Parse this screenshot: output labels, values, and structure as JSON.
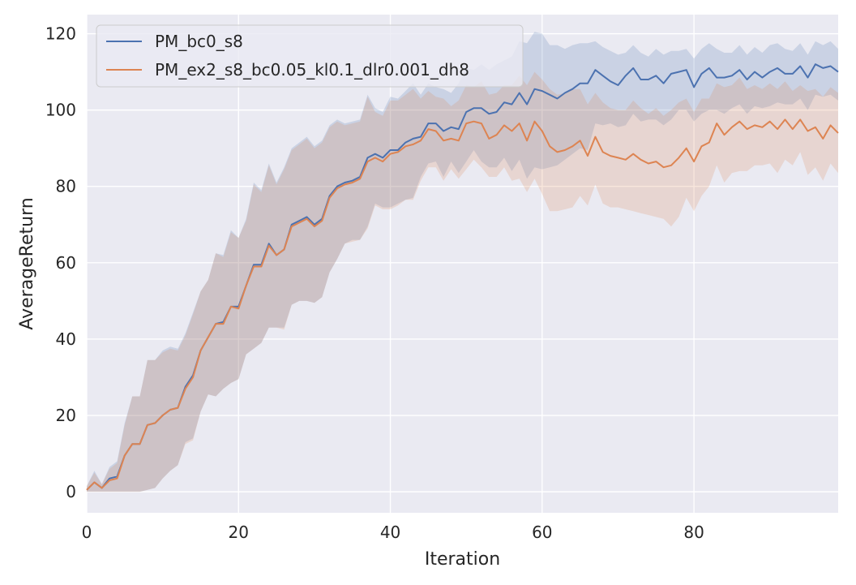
{
  "chart_data": {
    "type": "line",
    "title": "",
    "xlabel": "Iteration",
    "ylabel": "AverageReturn",
    "xlim": [
      0,
      99
    ],
    "ylim": [
      -5.5,
      125
    ],
    "xticks": [
      0,
      20,
      40,
      60,
      80
    ],
    "yticks": [
      0,
      20,
      40,
      60,
      80,
      100,
      120
    ],
    "grid": true,
    "legend_position": "top-left",
    "background_color": "#eaeaf2",
    "series": [
      {
        "name": "PM_bc0_s8",
        "color": "#4c72b0",
        "x": [
          0,
          1,
          2,
          3,
          4,
          5,
          6,
          7,
          8,
          9,
          10,
          11,
          12,
          13,
          14,
          15,
          16,
          17,
          18,
          19,
          20,
          21,
          22,
          23,
          24,
          25,
          26,
          27,
          28,
          29,
          30,
          31,
          32,
          33,
          34,
          35,
          36,
          37,
          38,
          39,
          40,
          41,
          42,
          43,
          44,
          45,
          46,
          47,
          48,
          49,
          50,
          51,
          52,
          53,
          54,
          55,
          56,
          57,
          58,
          59,
          60,
          61,
          62,
          63,
          64,
          65,
          66,
          67,
          68,
          69,
          70,
          71,
          72,
          73,
          74,
          75,
          76,
          77,
          78,
          79,
          80,
          81,
          82,
          83,
          84,
          85,
          86,
          87,
          88,
          89,
          90,
          91,
          92,
          93,
          94,
          95,
          96,
          97,
          98,
          99
        ],
        "values": [
          0.5,
          2.5,
          1.0,
          3.5,
          4.0,
          9.5,
          12.5,
          12.5,
          17.5,
          18.0,
          20.0,
          21.5,
          22.0,
          27.5,
          30.5,
          37.0,
          40.5,
          44.0,
          44.5,
          48.5,
          48.5,
          54.0,
          59.5,
          59.5,
          65.0,
          62.0,
          63.5,
          70.0,
          71.0,
          72.0,
          70.0,
          71.5,
          77.5,
          80.0,
          81.0,
          81.5,
          82.5,
          87.5,
          88.5,
          87.5,
          89.5,
          89.5,
          91.5,
          92.5,
          93.0,
          96.5,
          96.5,
          94.5,
          95.5,
          95.0,
          99.5,
          100.5,
          100.5,
          99.0,
          99.5,
          102.0,
          101.5,
          104.5,
          101.5,
          105.5,
          105.0,
          104.0,
          103.0,
          104.5,
          105.5,
          107.0,
          107.0,
          110.5,
          109.0,
          107.5,
          106.5,
          109.0,
          111.0,
          108.0,
          108.0,
          109.0,
          107.0,
          109.5,
          110.0,
          110.5,
          106.0,
          109.5,
          111.0,
          108.5,
          108.5,
          109.0,
          110.5,
          108.0,
          110.0,
          108.5,
          110.0,
          111.0,
          109.5,
          109.5,
          111.5,
          108.5,
          112.0,
          111.0,
          111.5,
          110.0
        ],
        "lower": [
          0.0,
          0.0,
          0.0,
          0.0,
          0.0,
          0.0,
          0.0,
          0.0,
          0.5,
          1.0,
          3.5,
          5.5,
          7.0,
          13.0,
          14.0,
          21.0,
          25.5,
          25.0,
          27.0,
          28.5,
          29.5,
          36.0,
          37.5,
          39.0,
          43.0,
          43.0,
          43.0,
          49.0,
          50.0,
          50.0,
          49.5,
          51.0,
          57.5,
          61.0,
          65.0,
          66.0,
          66.0,
          69.5,
          75.5,
          74.5,
          74.5,
          75.5,
          76.5,
          77.0,
          82.5,
          86.0,
          86.5,
          82.5,
          86.5,
          83.5,
          86.5,
          89.5,
          86.5,
          85.0,
          85.0,
          87.5,
          84.0,
          87.0,
          82.0,
          85.0,
          84.5,
          85.0,
          85.5,
          87.0,
          88.5,
          90.0,
          89.5,
          96.5,
          96.0,
          96.5,
          95.5,
          96.0,
          99.0,
          97.0,
          97.5,
          97.5,
          96.0,
          97.5,
          100.0,
          100.0,
          97.0,
          99.0,
          100.0,
          100.0,
          99.0,
          100.5,
          101.5,
          99.0,
          101.0,
          100.5,
          101.0,
          102.0,
          101.5,
          101.5,
          103.0,
          100.0,
          104.0,
          103.5,
          104.0,
          102.5
        ],
        "upper": [
          1.5,
          5.5,
          2.0,
          6.5,
          8.0,
          18.0,
          25.0,
          25.0,
          34.5,
          34.5,
          37.0,
          38.0,
          37.5,
          41.5,
          47.0,
          52.5,
          55.5,
          62.5,
          62.0,
          68.5,
          66.5,
          71.5,
          81.0,
          79.0,
          86.0,
          81.0,
          85.0,
          90.0,
          91.5,
          93.0,
          90.5,
          92.0,
          96.0,
          97.5,
          96.5,
          97.0,
          97.5,
          104.0,
          100.5,
          99.5,
          103.5,
          103.0,
          105.0,
          107.0,
          104.0,
          107.0,
          106.0,
          105.5,
          104.5,
          107.0,
          111.0,
          110.5,
          112.0,
          110.5,
          112.0,
          113.0,
          114.0,
          118.0,
          117.5,
          120.5,
          120.0,
          117.0,
          117.0,
          116.0,
          117.0,
          117.5,
          117.5,
          118.0,
          116.5,
          115.5,
          114.5,
          115.0,
          117.0,
          115.0,
          114.0,
          116.0,
          114.5,
          115.5,
          115.5,
          116.0,
          113.5,
          116.0,
          117.5,
          116.0,
          115.0,
          115.0,
          117.0,
          114.5,
          116.5,
          115.0,
          117.0,
          117.5,
          116.0,
          115.5,
          117.5,
          114.5,
          118.0,
          117.0,
          118.0,
          116.0
        ]
      },
      {
        "name": "PM_ex2_s8_bc0.05_kl0.1_dlr0.001_dh8",
        "color": "#dd8452",
        "x": [
          0,
          1,
          2,
          3,
          4,
          5,
          6,
          7,
          8,
          9,
          10,
          11,
          12,
          13,
          14,
          15,
          16,
          17,
          18,
          19,
          20,
          21,
          22,
          23,
          24,
          25,
          26,
          27,
          28,
          29,
          30,
          31,
          32,
          33,
          34,
          35,
          36,
          37,
          38,
          39,
          40,
          41,
          42,
          43,
          44,
          45,
          46,
          47,
          48,
          49,
          50,
          51,
          52,
          53,
          54,
          55,
          56,
          57,
          58,
          59,
          60,
          61,
          62,
          63,
          64,
          65,
          66,
          67,
          68,
          69,
          70,
          71,
          72,
          73,
          74,
          75,
          76,
          77,
          78,
          79,
          80,
          81,
          82,
          83,
          84,
          85,
          86,
          87,
          88,
          89,
          90,
          91,
          92,
          93,
          94,
          95,
          96,
          97,
          98,
          99
        ],
        "values": [
          0.5,
          2.5,
          1.0,
          3.0,
          3.5,
          9.5,
          12.5,
          12.5,
          17.5,
          18.0,
          20.0,
          21.5,
          22.0,
          27.0,
          30.0,
          37.0,
          40.5,
          44.0,
          44.0,
          48.5,
          48.0,
          54.0,
          59.0,
          59.0,
          64.5,
          62.0,
          63.5,
          69.5,
          70.5,
          71.5,
          69.5,
          71.0,
          77.0,
          79.5,
          80.5,
          81.0,
          82.0,
          86.5,
          87.5,
          86.5,
          88.5,
          89.0,
          90.5,
          91.0,
          92.0,
          95.0,
          94.5,
          92.0,
          92.5,
          92.0,
          96.5,
          97.0,
          96.5,
          92.5,
          93.5,
          96.0,
          94.5,
          96.5,
          92.0,
          97.0,
          94.5,
          90.5,
          89.0,
          89.5,
          90.5,
          92.0,
          88.0,
          93.0,
          89.0,
          88.0,
          87.5,
          87.0,
          88.5,
          87.0,
          86.0,
          86.5,
          85.0,
          85.5,
          87.5,
          90.0,
          86.5,
          90.5,
          91.5,
          96.5,
          93.5,
          95.5,
          97.0,
          95.0,
          96.0,
          95.5,
          97.0,
          95.0,
          97.5,
          95.0,
          97.5,
          94.5,
          95.5,
          92.5,
          96.0,
          94.0
        ],
        "lower": [
          0.0,
          0.0,
          0.0,
          0.0,
          0.0,
          0.0,
          0.0,
          0.0,
          0.5,
          1.0,
          3.5,
          5.5,
          7.0,
          12.5,
          13.5,
          21.0,
          25.5,
          25.0,
          27.0,
          28.5,
          29.5,
          36.0,
          37.5,
          39.0,
          43.0,
          43.0,
          42.5,
          49.0,
          50.0,
          50.0,
          49.5,
          51.0,
          57.5,
          61.0,
          65.0,
          65.5,
          66.0,
          69.0,
          75.0,
          74.0,
          74.0,
          75.0,
          76.5,
          76.5,
          81.5,
          85.0,
          85.0,
          81.5,
          84.5,
          82.0,
          84.5,
          87.0,
          85.0,
          82.5,
          82.5,
          85.0,
          81.5,
          82.0,
          78.5,
          82.0,
          78.0,
          73.5,
          73.5,
          74.0,
          74.5,
          77.5,
          75.0,
          80.5,
          75.5,
          74.5,
          74.5,
          74.0,
          73.5,
          73.0,
          72.5,
          72.0,
          71.5,
          69.5,
          72.0,
          77.0,
          73.5,
          77.5,
          80.0,
          85.5,
          81.0,
          83.5,
          84.0,
          84.0,
          85.5,
          85.5,
          86.0,
          83.5,
          87.0,
          85.5,
          89.0,
          83.0,
          85.0,
          81.5,
          86.0,
          83.5
        ],
        "upper": [
          1.5,
          5.0,
          2.0,
          6.0,
          7.5,
          17.5,
          25.0,
          25.0,
          34.5,
          34.5,
          36.5,
          37.5,
          37.0,
          41.0,
          46.5,
          52.5,
          55.5,
          62.5,
          61.5,
          68.0,
          66.5,
          71.0,
          80.5,
          78.5,
          85.5,
          80.5,
          84.5,
          89.5,
          91.0,
          92.5,
          90.0,
          91.5,
          95.5,
          97.0,
          96.0,
          96.5,
          97.0,
          103.5,
          99.5,
          98.5,
          102.5,
          102.5,
          104.0,
          105.5,
          103.0,
          105.0,
          103.5,
          103.0,
          101.0,
          102.5,
          106.5,
          106.0,
          107.5,
          104.0,
          104.5,
          106.5,
          106.5,
          109.0,
          106.5,
          110.0,
          108.0,
          105.5,
          104.0,
          104.5,
          105.5,
          105.5,
          101.5,
          104.5,
          102.0,
          100.5,
          100.0,
          100.0,
          102.5,
          100.5,
          99.0,
          100.5,
          98.5,
          100.0,
          102.0,
          103.0,
          99.5,
          103.0,
          103.0,
          107.0,
          106.0,
          106.5,
          108.5,
          105.5,
          106.5,
          105.5,
          107.0,
          105.5,
          107.5,
          105.0,
          106.5,
          105.0,
          105.5,
          103.5,
          106.0,
          104.5
        ]
      }
    ]
  }
}
